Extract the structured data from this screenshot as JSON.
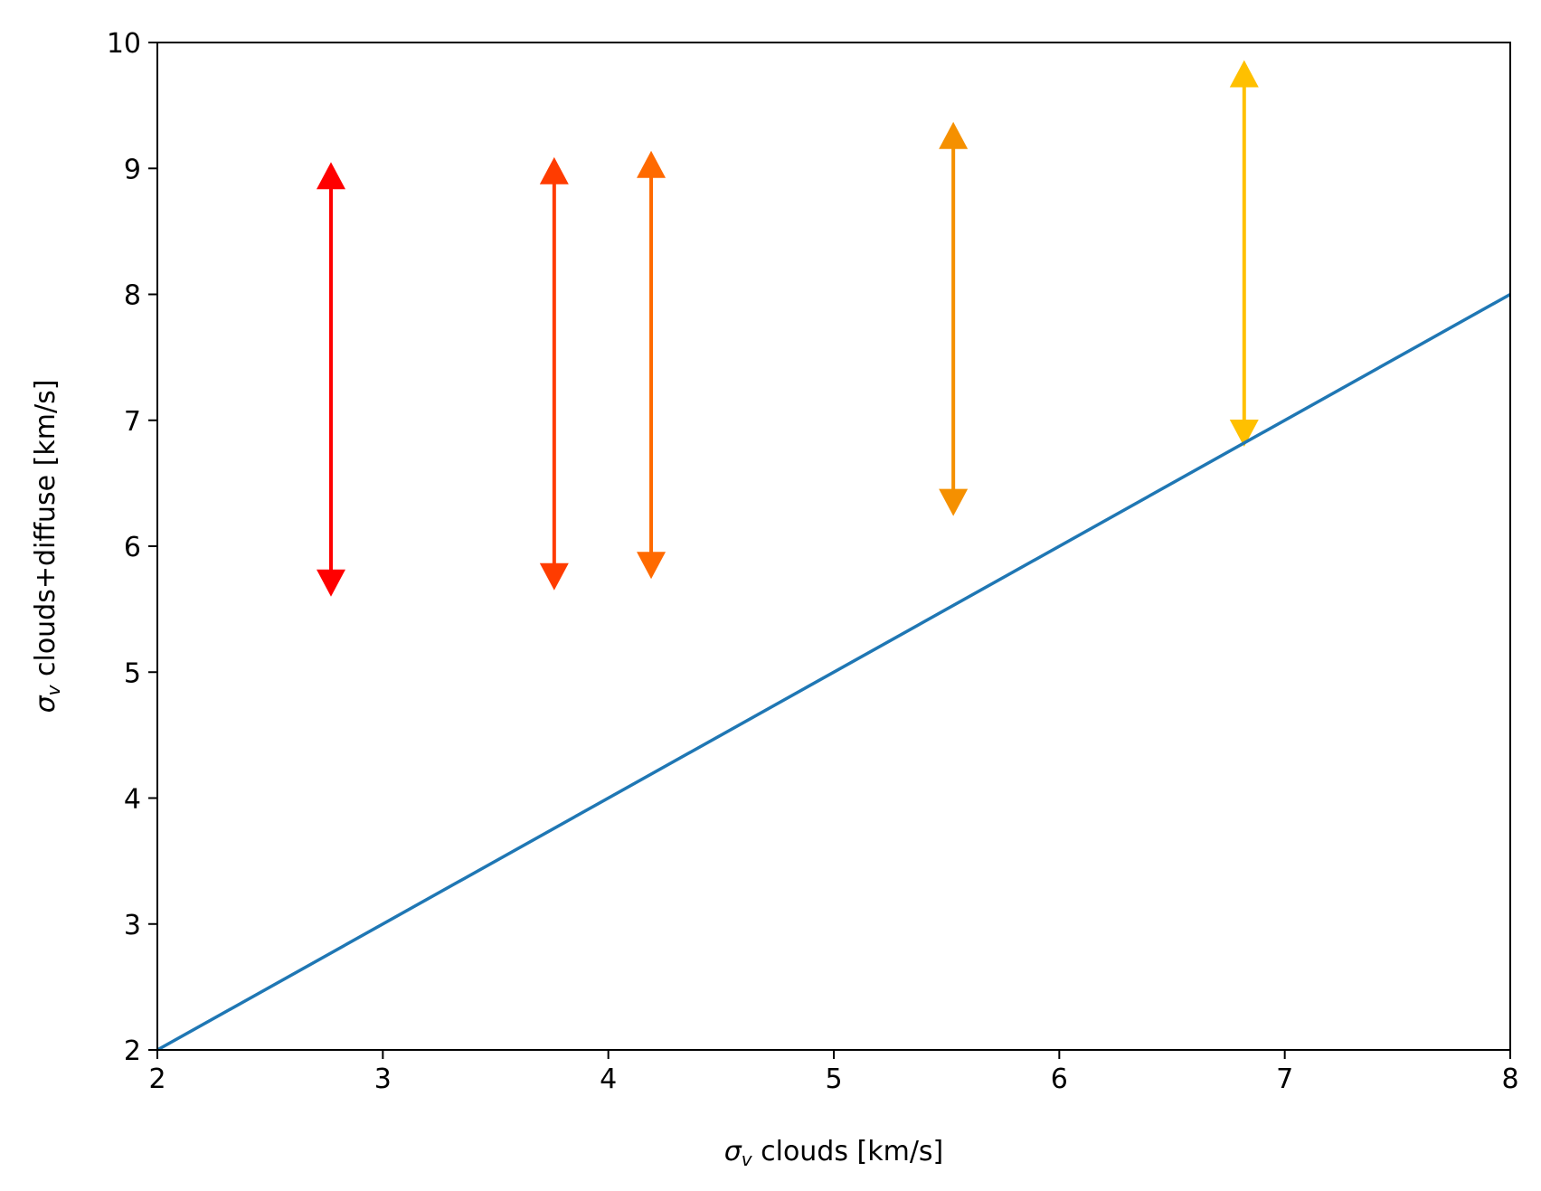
{
  "chart_data": {
    "type": "line",
    "title": "",
    "xlabel": {
      "symbol": "σ",
      "subscript": "v",
      "text": " clouds [km/s]"
    },
    "ylabel": {
      "symbol": "σ",
      "subscript": "v",
      "text": " clouds+diffuse [km/s]"
    },
    "xlim": [
      2,
      8
    ],
    "ylim": [
      2,
      10
    ],
    "xticks": [
      2,
      3,
      4,
      5,
      6,
      7,
      8
    ],
    "yticks": [
      2,
      3,
      4,
      5,
      6,
      7,
      8,
      9,
      10
    ],
    "grid": false,
    "legend": "none",
    "series": [
      {
        "type": "line",
        "color": "#1f77b4",
        "x": [
          2,
          8
        ],
        "y": [
          2,
          8
        ]
      }
    ],
    "ranges": [
      {
        "x": 2.77,
        "y_low": 5.6,
        "y_high": 9.05,
        "color": "#ff0000"
      },
      {
        "x": 3.76,
        "y_low": 5.65,
        "y_high": 9.09,
        "color": "#ff3c00"
      },
      {
        "x": 4.19,
        "y_low": 5.74,
        "y_high": 9.14,
        "color": "#ff6a00"
      },
      {
        "x": 5.53,
        "y_low": 6.24,
        "y_high": 9.37,
        "color": "#f59000"
      },
      {
        "x": 6.82,
        "y_low": 6.79,
        "y_high": 9.86,
        "color": "#ffc000"
      }
    ]
  }
}
